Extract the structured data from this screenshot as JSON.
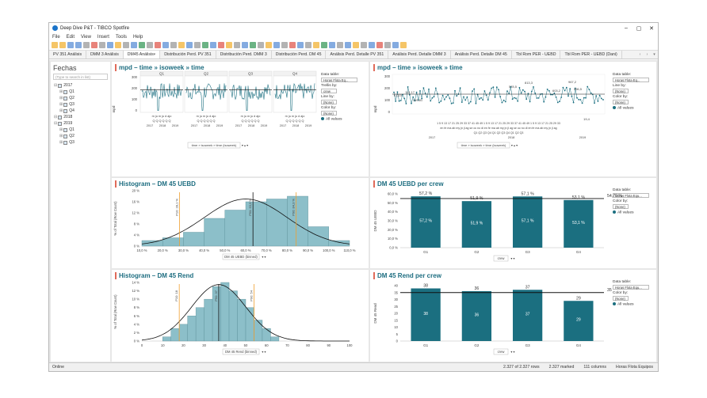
{
  "window": {
    "title": "Deep Dive P&T - TIBCO Spotfire"
  },
  "menu": [
    "File",
    "Edit",
    "View",
    "Insert",
    "Tools",
    "Help"
  ],
  "tabs": [
    "PV 351 Análisis",
    "DMM 3 Análisis",
    "DM45 Análisis",
    "Distribución Perd. PV 351",
    "Distribución Perd. DMM 3",
    "Distribución Perd. DM 45",
    "Análisis Perd. Detalle PV 351",
    "Análisis Perd. Detalle DMM 3",
    "Análisis Perd. Detalle DM 45",
    "Tbl Rom PER - UEBD",
    "Tbl Rom PER - UEBD (Dani)"
  ],
  "active_tab_index": 2,
  "filters": {
    "title": "Fechas",
    "search_placeholder": "(Type to search in list)",
    "tree": [
      {
        "label": "2017",
        "level": 0,
        "checked": true
      },
      {
        "label": "Q1",
        "level": 1,
        "checked": true
      },
      {
        "label": "Q2",
        "level": 1,
        "checked": true
      },
      {
        "label": "Q3",
        "level": 1,
        "checked": true
      },
      {
        "label": "Q4",
        "level": 1,
        "checked": true
      },
      {
        "label": "2018",
        "level": 0,
        "checked": true
      },
      {
        "label": "2019",
        "level": 0,
        "checked": true
      },
      {
        "label": "Q1",
        "level": 1,
        "checked": true
      },
      {
        "label": "Q2",
        "level": 1,
        "checked": true
      },
      {
        "label": "Q3",
        "level": 1,
        "checked": true
      }
    ]
  },
  "panels": {
    "p1": {
      "title": "mpd – time » isoweek » time",
      "ylabel": "mpd",
      "yticks": [
        "300",
        "200",
        "100",
        "0"
      ],
      "quarters": [
        "Q1",
        "Q2",
        "Q3",
        "Q4"
      ],
      "months": "m ju m ju d ajo",
      "qlabels": "Q Q Q Q Q Q",
      "years": [
        "2017",
        "2018",
        "2019"
      ],
      "axis_selector": "time » isoweek » time (isoweek)",
      "legend": {
        "data_table_label": "Data table:",
        "data_table_value": "Horas Flota Eq...",
        "trellis_label": "Trellis by:",
        "trellis_value": "crew",
        "line_label": "Line by:",
        "line_value": "(None)",
        "color_label": "Color by:",
        "color_value": "(None)",
        "all_values": "All values"
      }
    },
    "p2": {
      "title": "mpd – time » isoweek » time",
      "ylabel": "mpd",
      "yticks": [
        "300",
        "200",
        "100",
        "0"
      ],
      "data_labels": [
        "578,5",
        "813,3",
        "967,2",
        "596,5",
        "603,2",
        "19,4",
        "0,023",
        "199,81",
        "112,17"
      ],
      "week_labels": "1 5 9 13 17 21 25 29 33 37 41 45 49 1 5 9 13 17 21 25 29 33 37 41 45 49 1 5 9 13 17 21 25 29 33",
      "month_labels": "en fe ma ab my jn jl ag se oc no di en fe ma ab my jn jl ag se oc no di en fe ma ab my jn jl ag",
      "q_labels": "Q1 Q2 Q3 Q4 Q1 Q2 Q3 Q4 Q1 Q2 Q3",
      "years": [
        "2017",
        "2018",
        "2019"
      ],
      "axis_selector": "time » isoweek » time (isoweek)",
      "legend": {
        "data_table_label": "Data table:",
        "data_table_value": "Horas Flota Eq...",
        "line_label": "Line by:",
        "line_value": "(None)",
        "color_label": "Color by:",
        "color_value": "(None)",
        "all_values": "All values"
      }
    },
    "p3": {
      "title": "Histogram – DM 45 UEBD",
      "ylabel": "% of Total (Row Count)",
      "xlabel": "DM 45 UEBD (binned)",
      "p10_label": "P10: 28,1 %",
      "p50_label": "P50: 63,5 %",
      "p90_label": "P90: 84,3 %",
      "yticks": [
        "20 %",
        "16 %",
        "12 %",
        "8 %",
        "4 %",
        "0 %"
      ],
      "xticks": [
        "10,0 %",
        "20,0 %",
        "30,0 %",
        "40,0 %",
        "50,0 %",
        "60,0 %",
        "70,0 %",
        "80,0 %",
        "90,0 %",
        "100,0 %",
        "110,0 %"
      ]
    },
    "p4": {
      "title": "DM 45 UEBD per crew",
      "ylabel": "DM 45 UEBD",
      "xlabel": "crew",
      "categories": [
        "G1",
        "G2",
        "G3",
        "G4"
      ],
      "values_text": [
        "57,2 %",
        "51,9 %",
        "57,1 %",
        "53,1 %"
      ],
      "avg_label": "54,79 %",
      "yticks": [
        "60,0 %",
        "50,0 %",
        "40,0 %",
        "30,0 %",
        "20,0 %",
        "10,0 %",
        "0,0 %"
      ],
      "legend": {
        "data_table_label": "Data table:",
        "data_table_value": "Horas Flota Equ...",
        "color_label": "Color by:",
        "color_value": "(None)",
        "all_values": "All values"
      }
    },
    "p5": {
      "title": "Histogram – DM 45 Rend",
      "ylabel": "% of Total (Row Count)",
      "xlabel": "DM 45 Rend (binned)",
      "p10_label": "P10: 18",
      "p50_label": "P50: 37",
      "p90_label": "P90: 54",
      "yticks": [
        "14 %",
        "12 %",
        "10 %",
        "8 %",
        "6 %",
        "4 %",
        "2 %",
        "0 %"
      ],
      "xticks": [
        "0",
        "10",
        "20",
        "30",
        "40",
        "50",
        "60",
        "70",
        "80",
        "90",
        "100"
      ]
    },
    "p6": {
      "title": "DM 45 Rend per crew",
      "ylabel": "DM 45 Rend",
      "xlabel": "crew",
      "categories": [
        "G1",
        "G2",
        "G3",
        "G4"
      ],
      "values_text": [
        "38",
        "36",
        "37",
        "29"
      ],
      "avg_label": "35",
      "yticks": [
        "40",
        "35",
        "30",
        "25",
        "20",
        "15",
        "10",
        "5",
        "0"
      ],
      "legend": {
        "data_table_label": "Data table:",
        "data_table_value": "Horas Flota Equ...",
        "color_label": "Color by:",
        "color_value": "(None)",
        "all_values": "All values"
      }
    }
  },
  "chart_data": [
    {
      "type": "bar",
      "title": "DM 45 UEBD per crew",
      "categories": [
        "G1",
        "G2",
        "G3",
        "G4"
      ],
      "values": [
        57.2,
        51.9,
        57.1,
        53.1
      ],
      "reference_line": 54.79,
      "ylim": [
        0,
        60
      ],
      "ylabel": "DM 45 UEBD",
      "xlabel": "crew"
    },
    {
      "type": "bar",
      "title": "DM 45 Rend per crew",
      "categories": [
        "G1",
        "G2",
        "G3",
        "G4"
      ],
      "values": [
        38,
        36,
        37,
        29
      ],
      "reference_line": 35,
      "ylim": [
        0,
        40
      ],
      "ylabel": "DM 45 Rend",
      "xlabel": "crew"
    },
    {
      "type": "bar",
      "title": "Histogram – DM 45 UEBD",
      "x": [
        15,
        25,
        35,
        45,
        55,
        65,
        75,
        85,
        95,
        105
      ],
      "values": [
        2,
        3,
        5,
        10,
        13,
        16,
        17,
        18,
        7,
        2
      ],
      "percentiles": {
        "P10": 28.1,
        "P50": 63.5,
        "P90": 84.3
      },
      "xlim": [
        10,
        110
      ],
      "ylim": [
        0,
        20
      ]
    },
    {
      "type": "bar",
      "title": "Histogram – DM 45 Rend",
      "x": [
        12,
        16,
        20,
        24,
        28,
        32,
        36,
        40,
        44,
        48,
        52,
        56,
        60,
        64
      ],
      "values": [
        1,
        3,
        4,
        6,
        8,
        10,
        13,
        14,
        12,
        10,
        8,
        5,
        3,
        1
      ],
      "percentiles": {
        "P10": 18,
        "P50": 37,
        "P90": 54
      },
      "xlim": [
        0,
        100
      ],
      "ylim": [
        0,
        14
      ]
    }
  ],
  "status": {
    "left": "Online",
    "rows": "2.327 of 2.327 rows",
    "marked": "2.327 marked",
    "columns": "111 columns",
    "table": "Horas Flota Equipos"
  },
  "colors": {
    "teal": "#1b6f80",
    "hist_fill": "#8cbfc9",
    "orange": "#f0a030",
    "title_accent": "#e06b5a"
  }
}
